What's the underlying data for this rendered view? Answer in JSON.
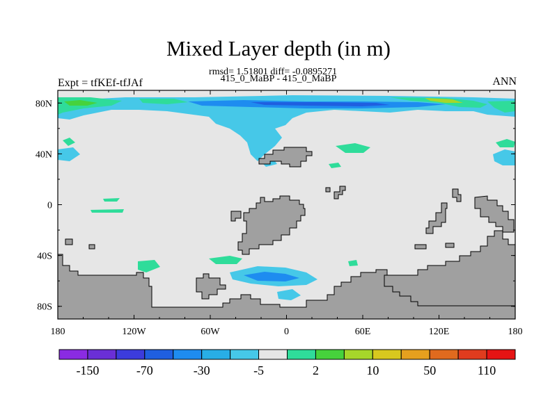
{
  "title": "Mixed Layer depth (in m)",
  "subtitle_stats": "rmsd= 1.51801 diff= -0.0895271",
  "subtitle_cases": "415_0_MaBP - 415_0_MaBP",
  "left_label": "Expt = tfKEf-tfJAf",
  "right_label": "ANN",
  "map": {
    "type": "contour-map",
    "lon_range": [
      -180,
      180
    ],
    "lat_range": [
      -90,
      90
    ],
    "x_ticks": [
      "180",
      "120W",
      "60W",
      "0",
      "60E",
      "120E",
      "180"
    ],
    "y_ticks": [
      "80N",
      "40N",
      "0",
      "40S",
      "80S"
    ],
    "background_color": "#e6e6e6",
    "land_color": "#a0a0a0"
  },
  "colorbar": {
    "colors": [
      "#8a2be2",
      "#6a2fd6",
      "#3c3cdc",
      "#1f5fe0",
      "#1e8cf0",
      "#28aee6",
      "#46c8e8",
      "#e6e6e6",
      "#2fdc9a",
      "#46d23c",
      "#a6d62a",
      "#d8c81e",
      "#e6a01e",
      "#e06a1e",
      "#e03c1e",
      "#e61414"
    ],
    "labels": [
      "-150",
      "-70",
      "-30",
      "-5",
      "2",
      "10",
      "50",
      "110"
    ]
  },
  "chart_data": {
    "type": "heatmap",
    "title": "Mixed Layer depth (in m)",
    "subtitle": "rmsd= 1.51801 diff= -0.0895271",
    "xlabel": "",
    "ylabel": "",
    "x_ticks": [
      "180",
      "120W",
      "60W",
      "0",
      "60E",
      "120E",
      "180"
    ],
    "y_ticks": [
      "80N",
      "40N",
      "0",
      "40S",
      "80S"
    ],
    "colorbar_labels": [
      "-150",
      "-70",
      "-30",
      "-5",
      "2",
      "10",
      "50",
      "110"
    ]
  }
}
